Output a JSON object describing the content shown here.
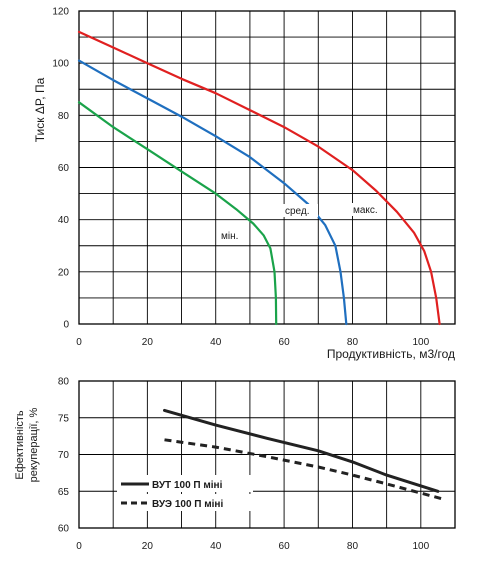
{
  "chart_data": [
    {
      "type": "line",
      "ylabel": "Тиск ΔP, Па",
      "xlabel": "Продуктивність, м3/год",
      "xlim": [
        0,
        110
      ],
      "ylim": [
        0,
        120
      ],
      "x_ticks": [
        "0",
        "20",
        "40",
        "60",
        "80",
        "100"
      ],
      "y_ticks": [
        "0",
        "20",
        "40",
        "60",
        "80",
        "100",
        "120"
      ],
      "grid": true,
      "series": [
        {
          "name": "мін.",
          "color": "#1aa34a",
          "points": [
            [
              0,
              85
            ],
            [
              10,
              75.5
            ],
            [
              20,
              67
            ],
            [
              30,
              58.5
            ],
            [
              40,
              50
            ],
            [
              46,
              44
            ],
            [
              51,
              38.5
            ],
            [
              54,
              34
            ],
            [
              56,
              29
            ],
            [
              57.2,
              20
            ],
            [
              57.6,
              10
            ],
            [
              57.7,
              0
            ]
          ]
        },
        {
          "name": "сред.",
          "color": "#1f6fbf",
          "points": [
            [
              0,
              101
            ],
            [
              10,
              93.5
            ],
            [
              20,
              86.5
            ],
            [
              30,
              79.5
            ],
            [
              40,
              72
            ],
            [
              50,
              64
            ],
            [
              60,
              54
            ],
            [
              67,
              46
            ],
            [
              72,
              38
            ],
            [
              75,
              30
            ],
            [
              76.5,
              20
            ],
            [
              77.5,
              10
            ],
            [
              78.2,
              0
            ]
          ]
        },
        {
          "name": "макс.",
          "color": "#e02020",
          "points": [
            [
              0,
              112
            ],
            [
              10,
              106
            ],
            [
              20,
              100
            ],
            [
              30,
              94
            ],
            [
              40,
              88.5
            ],
            [
              50,
              82
            ],
            [
              60,
              75.5
            ],
            [
              70,
              68
            ],
            [
              80,
              59
            ],
            [
              87,
              51
            ],
            [
              93,
              43
            ],
            [
              98,
              35
            ],
            [
              101,
              28
            ],
            [
              103,
              20
            ],
            [
              104.5,
              10
            ],
            [
              105.5,
              0
            ]
          ]
        }
      ]
    },
    {
      "type": "line",
      "ylabel": "Ефективність рекуперації, %",
      "xlim": [
        0,
        110
      ],
      "ylim": [
        60,
        80
      ],
      "x_ticks": [
        "0",
        "20",
        "40",
        "60",
        "80",
        "100"
      ],
      "y_ticks": [
        "60",
        "65",
        "70",
        "75",
        "80"
      ],
      "grid": true,
      "legend_position": "bottom-left",
      "series": [
        {
          "name": "ВУТ 100 П міні",
          "style": "solid",
          "color": "#222222",
          "points": [
            [
              25,
              76
            ],
            [
              40,
              74
            ],
            [
              55,
              72.2
            ],
            [
              70,
              70.5
            ],
            [
              80,
              69
            ],
            [
              90,
              67.2
            ],
            [
              105,
              65
            ]
          ]
        },
        {
          "name": "ВУЭ 100 П міні",
          "style": "dashed",
          "color": "#222222",
          "points": [
            [
              25,
              72
            ],
            [
              40,
              71
            ],
            [
              55,
              69.7
            ],
            [
              70,
              68.3
            ],
            [
              80,
              67.2
            ],
            [
              90,
              66
            ],
            [
              106,
              64
            ]
          ]
        }
      ]
    }
  ]
}
